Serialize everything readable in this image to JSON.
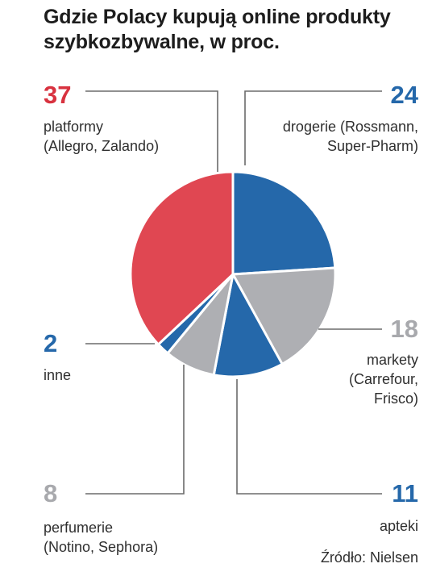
{
  "chart_data": {
    "type": "pie",
    "title": [
      "Gdzie Polacy kupują online produkty",
      "szybkozbywalne, w proc."
    ],
    "unit": "",
    "slices": [
      {
        "id": "drogerie",
        "value": 24,
        "value_label": "24",
        "label": [
          "drogerie (Rossmann,",
          "Super-Pharm)"
        ],
        "color": "#2568aa",
        "value_color": "#2568aa"
      },
      {
        "id": "markety",
        "value": 18,
        "value_label": "18",
        "label": [
          "markety",
          "(Carrefour,",
          "Frisco)"
        ],
        "color": "#aeafb3",
        "value_color": "#a8a9ad"
      },
      {
        "id": "apteki",
        "value": 11,
        "value_label": "11",
        "label": [
          "apteki"
        ],
        "color": "#2568aa",
        "value_color": "#2568aa"
      },
      {
        "id": "perfumerie",
        "value": 8,
        "value_label": "8",
        "label": [
          "perfumerie",
          "(Notino, Sephora)"
        ],
        "color": "#aeafb3",
        "value_color": "#a8a9ad"
      },
      {
        "id": "inne",
        "value": 2,
        "value_label": "2",
        "label": [
          "inne"
        ],
        "color": "#2568aa",
        "value_color": "#2568aa"
      },
      {
        "id": "platformy",
        "value": 37,
        "value_label": "37",
        "label": [
          "platformy",
          "(Allegro, Zalando)"
        ],
        "color": "#e04752",
        "value_color": "#d8323f"
      }
    ],
    "source": "Źródło: Nielsen",
    "line_color": "#6b6b6b"
  }
}
